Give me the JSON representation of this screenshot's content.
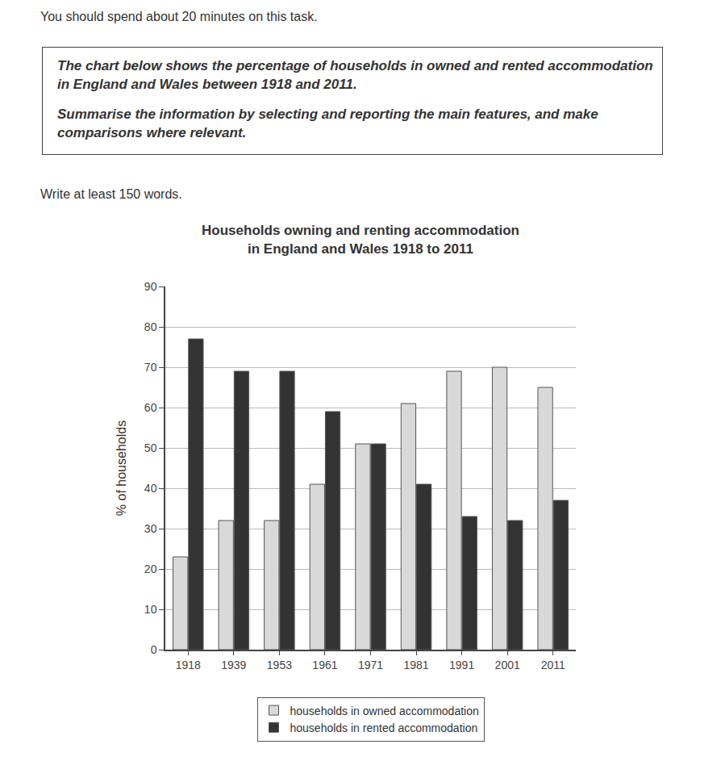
{
  "task": {
    "intro": "You should spend about 20 minutes on this task.",
    "prompt": [
      "The chart below shows the percentage of households in owned and rented accommodation in England and Wales between 1918 and 2011.",
      "Summarise the information by selecting and reporting the main features, and make comparisons where relevant."
    ],
    "words": "Write at least 150 words."
  },
  "chart_data": {
    "type": "bar",
    "title": "Households owning and renting accommodation\nin England and Wales 1918 to 2011",
    "ylabel": "% of households",
    "categories": [
      "1918",
      "1939",
      "1953",
      "1961",
      "1971",
      "1981",
      "1991",
      "2001",
      "2011"
    ],
    "series": [
      {
        "name": "households in owned accommodation",
        "color": "#d9d9d9",
        "values": [
          23,
          32,
          32,
          41,
          51,
          61,
          69,
          70,
          65
        ]
      },
      {
        "name": "households in rented accommodation",
        "color": "#333333",
        "values": [
          77,
          69,
          69,
          59,
          51,
          41,
          33,
          32,
          37
        ]
      }
    ],
    "ylim": [
      0,
      90
    ],
    "yticks": [
      0,
      10,
      20,
      30,
      40,
      50,
      60,
      70,
      80,
      90
    ],
    "grid": true,
    "legend": "bottom"
  }
}
